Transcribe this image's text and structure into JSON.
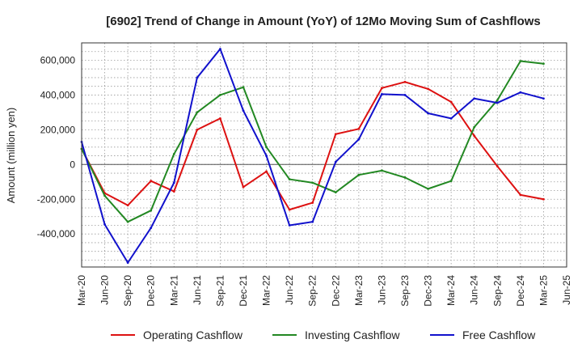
{
  "chart_data": {
    "type": "line",
    "title": "[6902]  Trend of Change in Amount (YoY) of 12Mo Moving Sum of Cashflows",
    "xlabel": "",
    "ylabel": "Amount (million yen)",
    "ylim": [
      -590000,
      700000
    ],
    "yticks": [
      -400000,
      -200000,
      0,
      200000,
      400000,
      600000
    ],
    "ytick_labels": [
      "-400,000",
      "-200,000",
      "0",
      "200,000",
      "400,000",
      "600,000"
    ],
    "categories": [
      "Mar-20",
      "Jun-20",
      "Sep-20",
      "Dec-20",
      "Mar-21",
      "Jun-21",
      "Sep-21",
      "Dec-21",
      "Mar-22",
      "Jun-22",
      "Sep-22",
      "Dec-22",
      "Mar-23",
      "Jun-23",
      "Sep-23",
      "Dec-23",
      "Mar-24",
      "Jun-24",
      "Sep-24",
      "Dec-24",
      "Mar-25",
      "Jun-25"
    ],
    "series": [
      {
        "name": "Operating Cashflow",
        "color": "#dd1111",
        "values": [
          90000,
          -165000,
          -235000,
          -95000,
          -155000,
          200000,
          265000,
          -130000,
          -40000,
          -260000,
          -220000,
          175000,
          205000,
          440000,
          475000,
          435000,
          360000,
          165000,
          -10000,
          -175000,
          -200000,
          null
        ]
      },
      {
        "name": "Investing Cashflow",
        "color": "#228822",
        "values": [
          90000,
          -180000,
          -330000,
          -265000,
          60000,
          300000,
          400000,
          445000,
          100000,
          -85000,
          -105000,
          -160000,
          -60000,
          -35000,
          -75000,
          -140000,
          -95000,
          215000,
          370000,
          595000,
          580000,
          null
        ]
      },
      {
        "name": "Free Cashflow",
        "color": "#1111cc",
        "values": [
          130000,
          -345000,
          -565000,
          -365000,
          -105000,
          500000,
          665000,
          310000,
          50000,
          -350000,
          -330000,
          15000,
          145000,
          405000,
          400000,
          295000,
          265000,
          380000,
          355000,
          415000,
          380000,
          null
        ]
      }
    ]
  }
}
